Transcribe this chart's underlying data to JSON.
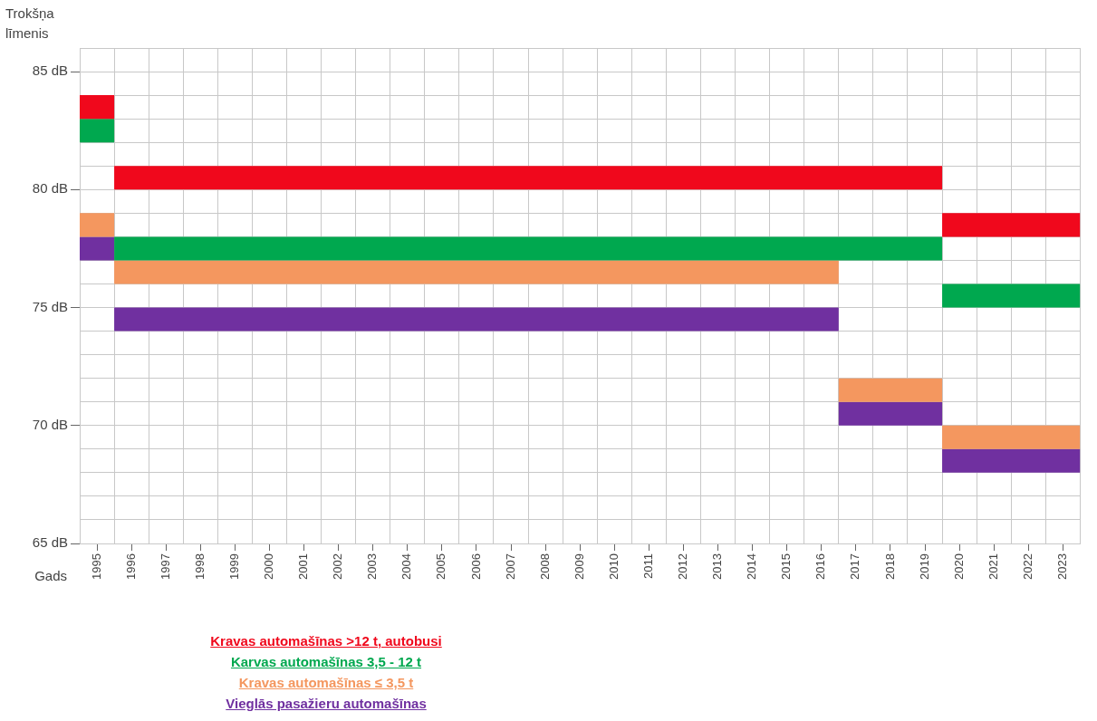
{
  "chart_data": {
    "type": "line",
    "ylabel": "Trokšņa līmenis",
    "xlabel": "Gads",
    "xlim": [
      1995,
      2024
    ],
    "xticks": [
      {
        "value": 1995.5,
        "label": "1995"
      },
      {
        "value": 1996.5,
        "label": "1996"
      },
      {
        "value": 1997.5,
        "label": "1997"
      },
      {
        "value": 1998.5,
        "label": "1998"
      },
      {
        "value": 1999.5,
        "label": "1999"
      },
      {
        "value": 2000.5,
        "label": "2000"
      },
      {
        "value": 2001.5,
        "label": "2001"
      },
      {
        "value": 2002.5,
        "label": "2002"
      },
      {
        "value": 2003.5,
        "label": "2003"
      },
      {
        "value": 2004.5,
        "label": "2004"
      },
      {
        "value": 2005.5,
        "label": "2005"
      },
      {
        "value": 2006.5,
        "label": "2006"
      },
      {
        "value": 2007.5,
        "label": "2007"
      },
      {
        "value": 2008.5,
        "label": "2008"
      },
      {
        "value": 2009.5,
        "label": "2009"
      },
      {
        "value": 2010.5,
        "label": "2010"
      },
      {
        "value": 2011.5,
        "label": "2011"
      },
      {
        "value": 2012.5,
        "label": "2012"
      },
      {
        "value": 2013.5,
        "label": "2013"
      },
      {
        "value": 2014.5,
        "label": "2014"
      },
      {
        "value": 2015.5,
        "label": "2015"
      },
      {
        "value": 2016.5,
        "label": "2016"
      },
      {
        "value": 2017.5,
        "label": "2017"
      },
      {
        "value": 2018.5,
        "label": "2018"
      },
      {
        "value": 2019.5,
        "label": "2019"
      },
      {
        "value": 2020.5,
        "label": "2020"
      },
      {
        "value": 2021.5,
        "label": "2021"
      },
      {
        "value": 2022.5,
        "label": "2022"
      },
      {
        "value": 2023.5,
        "label": "2023"
      }
    ],
    "ylim": [
      65,
      86
    ],
    "yticks": [
      {
        "value": 65,
        "label": "65 dB"
      },
      {
        "value": 66,
        "label": null
      },
      {
        "value": 67,
        "label": null
      },
      {
        "value": 68,
        "label": null
      },
      {
        "value": 69,
        "label": null
      },
      {
        "value": 70,
        "label": "70 dB"
      },
      {
        "value": 71,
        "label": null
      },
      {
        "value": 72,
        "label": null
      },
      {
        "value": 73,
        "label": null
      },
      {
        "value": 74,
        "label": null
      },
      {
        "value": 75,
        "label": "75 dB"
      },
      {
        "value": 76,
        "label": null
      },
      {
        "value": 77,
        "label": null
      },
      {
        "value": 78,
        "label": null
      },
      {
        "value": 79,
        "label": null
      },
      {
        "value": 80,
        "label": "80 dB"
      },
      {
        "value": 81,
        "label": null
      },
      {
        "value": 82,
        "label": null
      },
      {
        "value": 83,
        "label": null
      },
      {
        "value": 84,
        "label": null
      },
      {
        "value": 85,
        "label": "85 dB"
      },
      {
        "value": 86,
        "label": null
      }
    ],
    "grid": true,
    "legend": "bottom",
    "series": [
      {
        "name": "Kravas automašīnas >12 t, autobusi",
        "color": "#f0081c",
        "x": [
          1995,
          1996
        ],
        "values": [
          83.5,
          83.5
        ]
      },
      {
        "color": "#f0081c",
        "x": [
          1996,
          2020
        ],
        "values": [
          80.5,
          80.5
        ]
      },
      {
        "color": "#f0081c",
        "x": [
          2020,
          2024
        ],
        "values": [
          78.5,
          78.5
        ]
      },
      {
        "name": "Karvas automašīnas 3,5 - 12 t",
        "color": "#00a84f",
        "x": [
          1995,
          1996
        ],
        "values": [
          82.5,
          82.5
        ]
      },
      {
        "color": "#00a84f",
        "x": [
          1996,
          2020
        ],
        "values": [
          77.5,
          77.5
        ]
      },
      {
        "color": "#00a84f",
        "x": [
          2020,
          2024
        ],
        "values": [
          75.5,
          75.5
        ]
      },
      {
        "name": "Kravas automašīnas ≤ 3,5 t",
        "color": "#f4975f",
        "x": [
          1995,
          1996
        ],
        "values": [
          78.5,
          78.5
        ]
      },
      {
        "color": "#f4975f",
        "x": [
          1996,
          2017
        ],
        "values": [
          76.5,
          76.5
        ]
      },
      {
        "color": "#f4975f",
        "x": [
          2017,
          2020
        ],
        "values": [
          71.5,
          71.5
        ]
      },
      {
        "color": "#f4975f",
        "x": [
          2020,
          2024
        ],
        "values": [
          69.5,
          69.5
        ]
      },
      {
        "name": "Vieglās pasažieru automašīnas",
        "color": "#7030a0",
        "x": [
          1995,
          1996
        ],
        "values": [
          77.5,
          77.5
        ]
      },
      {
        "color": "#7030a0",
        "x": [
          1996,
          2017
        ],
        "values": [
          74.5,
          74.5
        ]
      },
      {
        "color": "#7030a0",
        "x": [
          2017,
          2020
        ],
        "values": [
          70.5,
          70.5
        ]
      },
      {
        "color": "#7030a0",
        "x": [
          2020,
          2024
        ],
        "values": [
          68.5,
          68.5
        ]
      }
    ]
  }
}
